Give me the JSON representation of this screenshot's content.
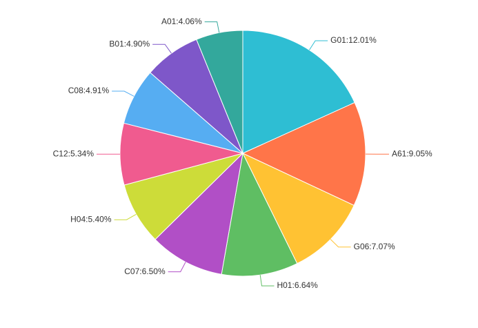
{
  "chart_data": {
    "type": "pie",
    "title": "",
    "slices": [
      {
        "label": "G01:12.01%",
        "name": "G01",
        "value": 12.01,
        "color": "#2ebed3"
      },
      {
        "label": "A61:9.05%",
        "name": "A61",
        "value": 9.05,
        "color": "#ff7549"
      },
      {
        "label": "G06:7.07%",
        "name": "G06",
        "value": 7.07,
        "color": "#ffc233"
      },
      {
        "label": "H01:6.64%",
        "name": "H01",
        "value": 6.64,
        "color": "#5fbe63"
      },
      {
        "label": "C07:6.50%",
        "name": "C07",
        "value": 6.5,
        "color": "#b14fc6"
      },
      {
        "label": "H04:5.40%",
        "name": "H04",
        "value": 5.4,
        "color": "#cddc39"
      },
      {
        "label": "C12:5.34%",
        "name": "C12",
        "value": 5.34,
        "color": "#f05b8f"
      },
      {
        "label": "C08:4.91%",
        "name": "C08",
        "value": 4.91,
        "color": "#56adf2"
      },
      {
        "label": "B01:4.90%",
        "name": "B01",
        "value": 4.9,
        "color": "#7e57c9"
      },
      {
        "label": "A01:4.06%",
        "name": "A01",
        "value": 4.06,
        "color": "#33a89c"
      }
    ],
    "legend": "none",
    "labels": "outside-with-leader-lines"
  }
}
